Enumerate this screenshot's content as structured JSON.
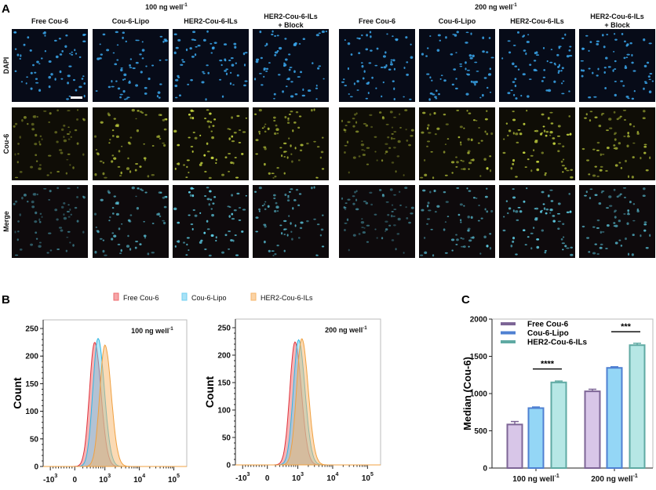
{
  "panel_a": {
    "label": "A",
    "dose_headers": [
      {
        "text": "100 ng well",
        "sup": "-1"
      },
      {
        "text": "200 ng well",
        "sup": "-1"
      }
    ],
    "columns": [
      [
        "Free Cou-6"
      ],
      [
        "Cou-6-Lipo"
      ],
      [
        "HER2-Cou-6-ILs"
      ],
      [
        "HER2-Cou-6-ILs",
        "+ Block"
      ],
      [
        "Free Cou-6"
      ],
      [
        "Cou-6-Lipo"
      ],
      [
        "HER2-Cou-6-ILs"
      ],
      [
        "HER2-Cou-6-ILs",
        "+ Block"
      ]
    ],
    "rows": [
      "DAPI",
      "Cou-6",
      "Merge"
    ],
    "row_colors": {
      "DAPI": "#3aa8ee",
      "Cou-6": "#c8d840",
      "Merge": "#5fd0e8"
    },
    "has_scale_bar": true
  },
  "chart_data": [
    {
      "panel": "B",
      "type": "area",
      "subtype": "flow-cytometry-histogram",
      "ylabel": "Count",
      "xlabel": "",
      "x_scale": "biexponential",
      "x_ticks": [
        {
          "base": "-10",
          "sup": "3",
          "value": -1000
        },
        {
          "base": "0",
          "sup": "",
          "value": 0
        },
        {
          "base": "10",
          "sup": "3",
          "value": 1000
        },
        {
          "base": "10",
          "sup": "4",
          "value": 10000
        },
        {
          "base": "10",
          "sup": "5",
          "value": 100000
        }
      ],
      "y_ticks": [
        0,
        50,
        100,
        150,
        200,
        250
      ],
      "ylim": [
        0,
        265
      ],
      "legend": {
        "placement": "top",
        "entries": [
          {
            "name": "Free Cou-6",
            "color": "#ee6b6e"
          },
          {
            "name": "Cou-6-Lipo",
            "color": "#6fcff0"
          },
          {
            "name": "HER2-Cou-6-ILs",
            "color": "#f7b66a"
          }
        ]
      },
      "plots": [
        {
          "annotation": {
            "text": "100 ng well",
            "sup": "-1"
          },
          "series": [
            {
              "name": "Free Cou-6",
              "peak_x": 500,
              "peak_count": 225
            },
            {
              "name": "Cou-6-Lipo",
              "peak_x": 650,
              "peak_count": 232
            },
            {
              "name": "HER2-Cou-6-ILs",
              "peak_x": 1000,
              "peak_count": 220
            }
          ]
        },
        {
          "annotation": {
            "text": "200 ng well",
            "sup": "-1"
          },
          "series": [
            {
              "name": "Free Cou-6",
              "peak_x": 850,
              "peak_count": 224
            },
            {
              "name": "Cou-6-Lipo",
              "peak_x": 1050,
              "peak_count": 228
            },
            {
              "name": "HER2-Cou-6-ILs",
              "peak_x": 1300,
              "peak_count": 230
            }
          ]
        }
      ]
    },
    {
      "panel": "C",
      "type": "bar",
      "ylabel": "Median (Cou-6)",
      "ylim": [
        0,
        2000
      ],
      "y_ticks": [
        0,
        500,
        1000,
        1500,
        2000
      ],
      "categories": [
        {
          "text": "100 ng well",
          "sup": "-1"
        },
        {
          "text": "200 ng well",
          "sup": "-1"
        }
      ],
      "legend_placement": "top-left",
      "series": [
        {
          "name": "Free Cou-6",
          "values": [
            585,
            1030
          ],
          "errors": [
            40,
            28
          ],
          "fill": "#d8c6e8",
          "stroke": "#7d6596"
        },
        {
          "name": "Cou-6-Lipo",
          "values": [
            805,
            1345
          ],
          "errors": [
            15,
            15
          ],
          "fill": "#94d6f6",
          "stroke": "#4f80d2"
        },
        {
          "name": "HER2-Cou-6-ILs",
          "values": [
            1150,
            1650
          ],
          "errors": [
            18,
            25
          ],
          "fill": "#b6e7e5",
          "stroke": "#5faaa3"
        }
      ],
      "significance": [
        {
          "category": 0,
          "label": "****"
        },
        {
          "category": 1,
          "label": "***"
        }
      ]
    }
  ]
}
